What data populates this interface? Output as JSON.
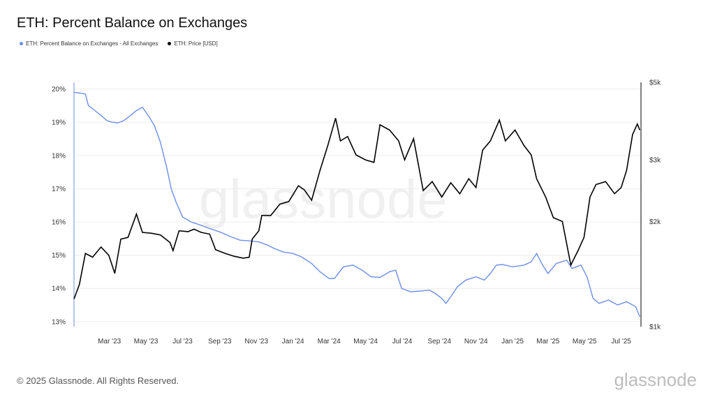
{
  "header": {
    "title": "ETH: Percent Balance on Exchanges"
  },
  "footer": {
    "copyright": "© 2025 Glassnode. All Rights Reserved.",
    "brand": "glassnode"
  },
  "watermark": "glassnode",
  "colors": {
    "balance": "#6c8ee8",
    "price": "#000000",
    "grid": "#ececec"
  },
  "chart_data": {
    "type": "line",
    "title": "ETH: Percent Balance on Exchanges",
    "x_ticks": [
      "Mar '23",
      "May '23",
      "Jul '23",
      "Sep '23",
      "Nov '23",
      "Jan '24",
      "Mar '24",
      "May '24",
      "Jul '24",
      "Sep '24",
      "Nov '24",
      "Jan '25",
      "Mar '25",
      "May '25",
      "Jul '25"
    ],
    "x_range": [
      "2023-01-01",
      "2025-08-03"
    ],
    "y_left": {
      "ticks": [
        "13%",
        "14%",
        "15%",
        "16%",
        "17%",
        "18%",
        "19%",
        "20%"
      ],
      "range": [
        12.85,
        20.2
      ],
      "unit": "%"
    },
    "y_right": {
      "ticks": [
        "$1k",
        "$2k",
        "$3k",
        "$5k"
      ],
      "scale": "log",
      "range": [
        1000,
        5000
      ],
      "unit": "USD"
    },
    "grid": true,
    "legend_position": "top-left",
    "series": [
      {
        "name": "ETH: Percent Balance on Exchanges - All Exchanges",
        "axis": "left",
        "color": "#6c8ee8",
        "points": [
          [
            "2023-01-01",
            19.9
          ],
          [
            "2023-01-10",
            19.88
          ],
          [
            "2023-01-20",
            19.85
          ],
          [
            "2023-01-25",
            19.5
          ],
          [
            "2023-02-05",
            19.35
          ],
          [
            "2023-02-15",
            19.2
          ],
          [
            "2023-02-25",
            19.05
          ],
          [
            "2023-03-05",
            19.0
          ],
          [
            "2023-03-15",
            18.98
          ],
          [
            "2023-03-25",
            19.05
          ],
          [
            "2023-04-05",
            19.2
          ],
          [
            "2023-04-15",
            19.35
          ],
          [
            "2023-04-25",
            19.45
          ],
          [
            "2023-05-05",
            19.2
          ],
          [
            "2023-05-15",
            18.9
          ],
          [
            "2023-05-25",
            18.4
          ],
          [
            "2023-06-05",
            17.6
          ],
          [
            "2023-06-12",
            17.0
          ],
          [
            "2023-06-20",
            16.6
          ],
          [
            "2023-07-01",
            16.15
          ],
          [
            "2023-07-15",
            16.0
          ],
          [
            "2023-08-01",
            15.9
          ],
          [
            "2023-08-15",
            15.8
          ],
          [
            "2023-09-01",
            15.7
          ],
          [
            "2023-09-20",
            15.55
          ],
          [
            "2023-10-05",
            15.45
          ],
          [
            "2023-10-20",
            15.43
          ],
          [
            "2023-11-05",
            15.4
          ],
          [
            "2023-11-20",
            15.3
          ],
          [
            "2023-12-01",
            15.2
          ],
          [
            "2023-12-15",
            15.1
          ],
          [
            "2024-01-01",
            15.05
          ],
          [
            "2024-01-15",
            14.95
          ],
          [
            "2024-02-01",
            14.75
          ],
          [
            "2024-02-15",
            14.5
          ],
          [
            "2024-03-01",
            14.3
          ],
          [
            "2024-03-10",
            14.3
          ],
          [
            "2024-03-25",
            14.65
          ],
          [
            "2024-04-10",
            14.7
          ],
          [
            "2024-04-25",
            14.55
          ],
          [
            "2024-05-10",
            14.35
          ],
          [
            "2024-05-25",
            14.33
          ],
          [
            "2024-06-10",
            14.5
          ],
          [
            "2024-06-20",
            14.55
          ],
          [
            "2024-06-30",
            14.0
          ],
          [
            "2024-07-15",
            13.9
          ],
          [
            "2024-08-01",
            13.92
          ],
          [
            "2024-08-15",
            13.95
          ],
          [
            "2024-08-25",
            13.85
          ],
          [
            "2024-09-05",
            13.7
          ],
          [
            "2024-09-12",
            13.55
          ],
          [
            "2024-09-20",
            13.75
          ],
          [
            "2024-10-01",
            14.05
          ],
          [
            "2024-10-15",
            14.25
          ],
          [
            "2024-11-01",
            14.35
          ],
          [
            "2024-11-15",
            14.25
          ],
          [
            "2024-11-25",
            14.45
          ],
          [
            "2024-12-05",
            14.7
          ],
          [
            "2024-12-15",
            14.72
          ],
          [
            "2025-01-01",
            14.65
          ],
          [
            "2025-01-20",
            14.7
          ],
          [
            "2025-02-01",
            14.8
          ],
          [
            "2025-02-10",
            15.05
          ],
          [
            "2025-02-20",
            14.7
          ],
          [
            "2025-03-01",
            14.45
          ],
          [
            "2025-03-15",
            14.75
          ],
          [
            "2025-04-01",
            14.85
          ],
          [
            "2025-04-10",
            14.6
          ],
          [
            "2025-04-25",
            14.7
          ],
          [
            "2025-05-05",
            14.35
          ],
          [
            "2025-05-15",
            13.7
          ],
          [
            "2025-05-25",
            13.55
          ],
          [
            "2025-06-10",
            13.65
          ],
          [
            "2025-06-25",
            13.5
          ],
          [
            "2025-07-10",
            13.6
          ],
          [
            "2025-07-25",
            13.45
          ],
          [
            "2025-08-01",
            13.15
          ]
        ]
      },
      {
        "name": "ETH: Price [USD]",
        "axis": "right",
        "color": "#000000",
        "points": [
          [
            "2023-01-01",
            1200
          ],
          [
            "2023-01-10",
            1320
          ],
          [
            "2023-01-20",
            1620
          ],
          [
            "2023-02-01",
            1580
          ],
          [
            "2023-02-15",
            1690
          ],
          [
            "2023-02-28",
            1600
          ],
          [
            "2023-03-10",
            1420
          ],
          [
            "2023-03-20",
            1780
          ],
          [
            "2023-04-01",
            1800
          ],
          [
            "2023-04-15",
            2100
          ],
          [
            "2023-04-25",
            1860
          ],
          [
            "2023-05-10",
            1850
          ],
          [
            "2023-05-25",
            1830
          ],
          [
            "2023-06-10",
            1740
          ],
          [
            "2023-06-15",
            1650
          ],
          [
            "2023-06-25",
            1880
          ],
          [
            "2023-07-10",
            1870
          ],
          [
            "2023-07-20",
            1900
          ],
          [
            "2023-08-01",
            1860
          ],
          [
            "2023-08-15",
            1840
          ],
          [
            "2023-08-25",
            1660
          ],
          [
            "2023-09-10",
            1620
          ],
          [
            "2023-09-25",
            1590
          ],
          [
            "2023-10-10",
            1570
          ],
          [
            "2023-10-20",
            1580
          ],
          [
            "2023-10-25",
            1780
          ],
          [
            "2023-11-05",
            1880
          ],
          [
            "2023-11-10",
            2080
          ],
          [
            "2023-11-25",
            2080
          ],
          [
            "2023-12-10",
            2240
          ],
          [
            "2023-12-25",
            2280
          ],
          [
            "2024-01-10",
            2530
          ],
          [
            "2024-01-20",
            2460
          ],
          [
            "2024-02-01",
            2300
          ],
          [
            "2024-02-15",
            2800
          ],
          [
            "2024-02-28",
            3300
          ],
          [
            "2024-03-12",
            3950
          ],
          [
            "2024-03-20",
            3400
          ],
          [
            "2024-04-01",
            3500
          ],
          [
            "2024-04-15",
            3100
          ],
          [
            "2024-05-01",
            3000
          ],
          [
            "2024-05-15",
            2950
          ],
          [
            "2024-05-25",
            3780
          ],
          [
            "2024-06-10",
            3650
          ],
          [
            "2024-06-25",
            3400
          ],
          [
            "2024-07-05",
            3000
          ],
          [
            "2024-07-20",
            3450
          ],
          [
            "2024-08-05",
            2450
          ],
          [
            "2024-08-20",
            2600
          ],
          [
            "2024-09-05",
            2350
          ],
          [
            "2024-09-20",
            2580
          ],
          [
            "2024-10-05",
            2400
          ],
          [
            "2024-10-20",
            2650
          ],
          [
            "2024-11-01",
            2500
          ],
          [
            "2024-11-12",
            3200
          ],
          [
            "2024-11-25",
            3400
          ],
          [
            "2024-12-10",
            3900
          ],
          [
            "2024-12-20",
            3400
          ],
          [
            "2025-01-05",
            3650
          ],
          [
            "2025-01-20",
            3300
          ],
          [
            "2025-02-01",
            3100
          ],
          [
            "2025-02-10",
            2650
          ],
          [
            "2025-02-25",
            2350
          ],
          [
            "2025-03-10",
            2050
          ],
          [
            "2025-03-25",
            2000
          ],
          [
            "2025-04-08",
            1500
          ],
          [
            "2025-04-20",
            1650
          ],
          [
            "2025-04-30",
            1800
          ],
          [
            "2025-05-10",
            2350
          ],
          [
            "2025-05-20",
            2550
          ],
          [
            "2025-06-05",
            2600
          ],
          [
            "2025-06-20",
            2400
          ],
          [
            "2025-07-01",
            2500
          ],
          [
            "2025-07-10",
            2800
          ],
          [
            "2025-07-20",
            3550
          ],
          [
            "2025-07-28",
            3800
          ],
          [
            "2025-08-01",
            3650
          ]
        ]
      }
    ]
  }
}
